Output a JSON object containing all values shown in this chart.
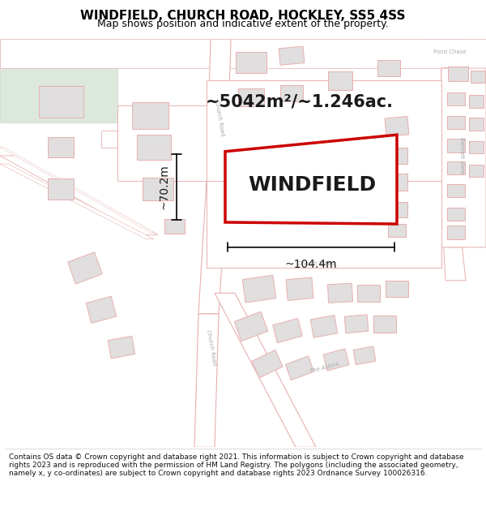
{
  "title": "WINDFIELD, CHURCH ROAD, HOCKLEY, SS5 4SS",
  "subtitle": "Map shows position and indicative extent of the property.",
  "property_label": "WINDFIELD",
  "area_label": "~5042m²/~1.246ac.",
  "width_label": "~104.4m",
  "height_label": "~70.2m",
  "footer": "Contains OS data © Crown copyright and database right 2021. This information is subject to Crown copyright and database rights 2023 and is reproduced with the permission of HM Land Registry. The polygons (including the associated geometry, namely x, y co-ordinates) are subject to Crown copyright and database rights 2023 Ordnance Survey 100026316.",
  "map_bg": "#f8f7f5",
  "road_fill": "#ffffff",
  "road_edge": "#e8b0b0",
  "road_edge2": "#d8a0a0",
  "building_fill": "#e0dede",
  "building_edge": "#e8b0b0",
  "green_fill": "#dce8dc",
  "green_edge": "#c8d8c8",
  "blue_fill": "#d4e4f0",
  "blue_edge": "#b8ccdc",
  "property_fill": "#ffffff",
  "property_edge": "#cc0000",
  "property_edge_width": 2.5,
  "title_fontsize": 11,
  "subtitle_fontsize": 9,
  "label_fontsize": 18,
  "area_fontsize": 15,
  "dim_fontsize": 10,
  "road_label_fontsize": 5.5,
  "footer_fontsize": 6.5
}
